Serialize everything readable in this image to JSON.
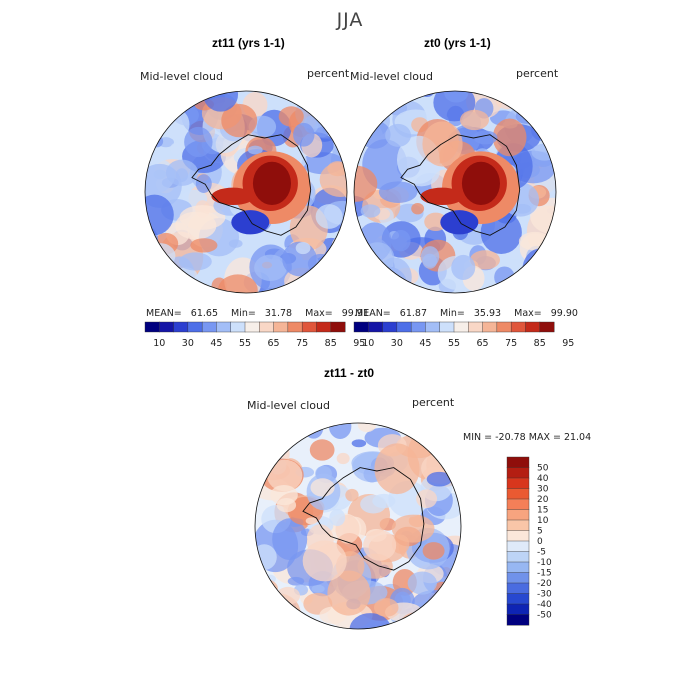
{
  "title": "JJA",
  "variable_label": "Mid-level cloud",
  "unit_label": "percent",
  "panels": [
    {
      "title": "zt11 (yrs 1-1)",
      "mean": "61.65",
      "min": "31.78",
      "max": "99.91"
    },
    {
      "title": "zt0 (yrs 1-1)",
      "mean": "61.87",
      "min": "35.93",
      "max": "99.90"
    }
  ],
  "abs_stat_labels": {
    "mean": "MEAN=",
    "min": "Min=",
    "max": "Max="
  },
  "abs_colorbar": {
    "colors": [
      "#00007f",
      "#1515a6",
      "#2c3fd0",
      "#4e6fe8",
      "#7897f2",
      "#a3bef7",
      "#cde0fb",
      "#f7efe9",
      "#f9d7c6",
      "#f5b597",
      "#ee8a66",
      "#e0563b",
      "#c42a1a",
      "#8f0e0b"
    ],
    "tick_labels": [
      "10",
      "30",
      "45",
      "55",
      "65",
      "75",
      "85",
      "95"
    ]
  },
  "diff_panel": {
    "title": "zt11 - zt0",
    "min_max_text": "MIN = -20.78 MAX =   21.04"
  },
  "diff_colorbar": {
    "colors": [
      "#8f0e0b",
      "#b41e12",
      "#d8361d",
      "#ea5a32",
      "#f47f58",
      "#f7a47f",
      "#f9c6a8",
      "#fbe7da",
      "#dfeaf9",
      "#bdd4f6",
      "#97b7f2",
      "#7092ea",
      "#4a6ce0",
      "#2748d0",
      "#0e24b4",
      "#00007f"
    ],
    "tick_labels": [
      "50",
      "40",
      "30",
      "20",
      "15",
      "10",
      "5",
      "0",
      "-5",
      "-10",
      "-15",
      "-20",
      "-30",
      "-40",
      "-50"
    ]
  }
}
